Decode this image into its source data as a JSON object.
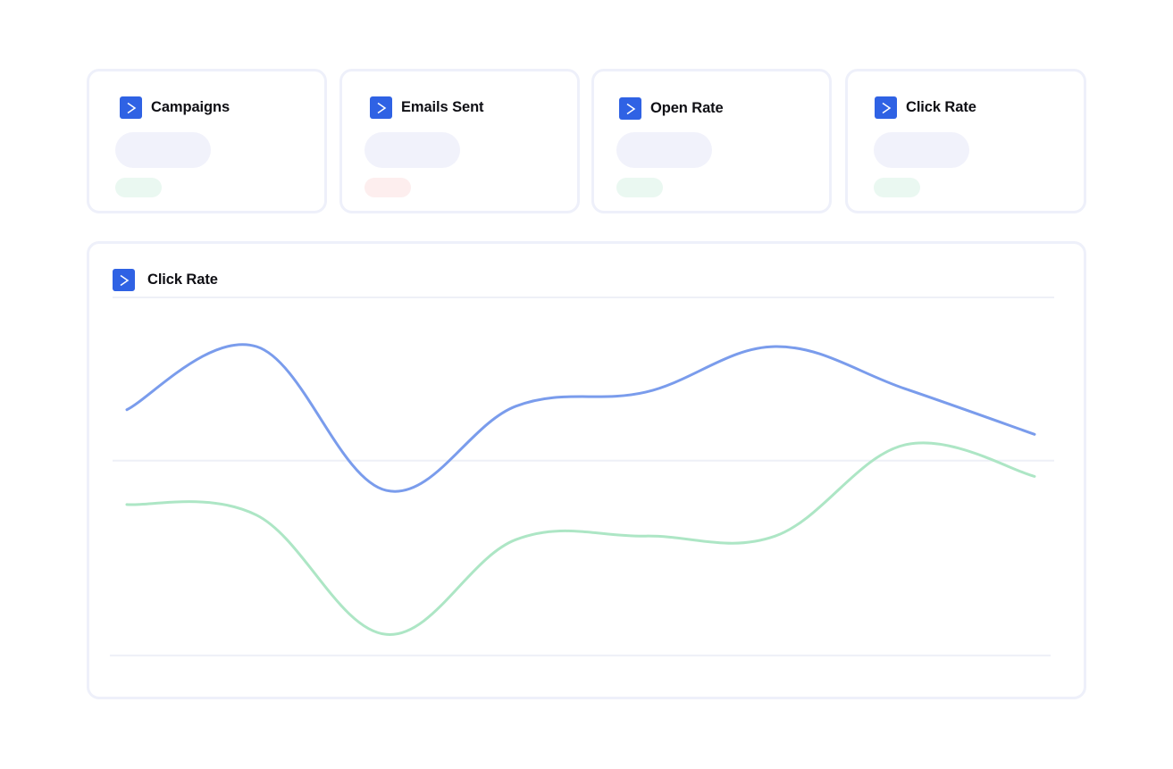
{
  "stat_cards": [
    {
      "title": "Campaigns",
      "icon": "activecampaign-logo-icon",
      "trend": "positive"
    },
    {
      "title": "Emails Sent",
      "icon": "activecampaign-logo-icon",
      "trend": "negative"
    },
    {
      "title": "Open Rate",
      "icon": "activecampaign-logo-icon",
      "trend": "positive"
    },
    {
      "title": "Click Rate",
      "icon": "activecampaign-logo-icon",
      "trend": "positive"
    }
  ],
  "chart_panel": {
    "title": "Click Rate",
    "icon": "activecampaign-logo-icon"
  },
  "colors": {
    "brand": "#2f62e4",
    "card_border": "#eef0fa",
    "skeleton": "#f1f2fb",
    "badge_positive": "#eaf8f1",
    "badge_negative": "#fdeeee",
    "series_blue": "#7a9cec",
    "series_green": "#ade6c5",
    "gridline": "#eef0f7"
  },
  "chart_data": {
    "type": "line",
    "title": "Click Rate",
    "xlabel": "",
    "ylabel": "",
    "x": [
      0,
      1,
      2,
      3,
      4,
      5,
      6,
      7
    ],
    "ylim": [
      0,
      10
    ],
    "grid": true,
    "series": [
      {
        "color": "#7a9cec",
        "values": [
          6.8,
          8.6,
          4.5,
          6.9,
          7.3,
          8.6,
          7.4,
          6.1
        ]
      },
      {
        "color": "#ade6c5",
        "values": [
          4.1,
          3.8,
          0.4,
          3.1,
          3.2,
          3.2,
          5.8,
          4.9
        ]
      }
    ]
  }
}
